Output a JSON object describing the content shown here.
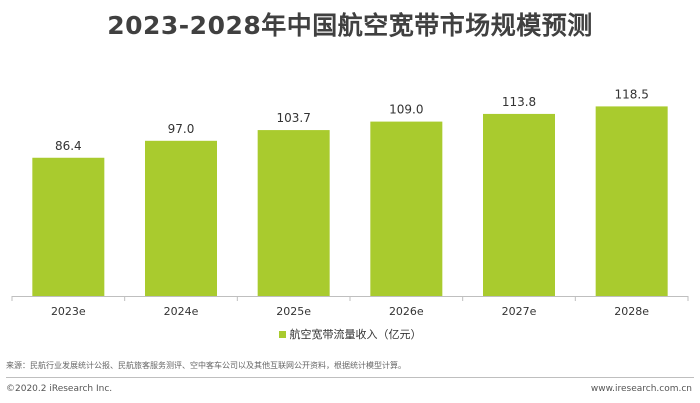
{
  "page": {
    "title": "2023-2028年中国航空宽带市场规模预测",
    "source": "来源：民航行业发展统计公报、民航旅客服务测评、空中客车公司以及其他互联网公开资料，根据统计模型计算。",
    "copyright": "©2020.2 iResearch Inc.",
    "website": "www.iresearch.com.cn"
  },
  "colors": {
    "bar": "#A9CB2E",
    "axis": "#bfbfbf"
  },
  "chart_data": {
    "type": "bar",
    "categories": [
      "2023e",
      "2024e",
      "2025e",
      "2026e",
      "2027e",
      "2028e"
    ],
    "series": [
      {
        "name": "航空宽带流量收入（亿元）",
        "values": [
          86.4,
          97.0,
          103.7,
          109.0,
          113.8,
          118.5
        ]
      }
    ],
    "ylim": [
      0,
      130
    ],
    "grid": false,
    "legend_position": "bottom"
  }
}
